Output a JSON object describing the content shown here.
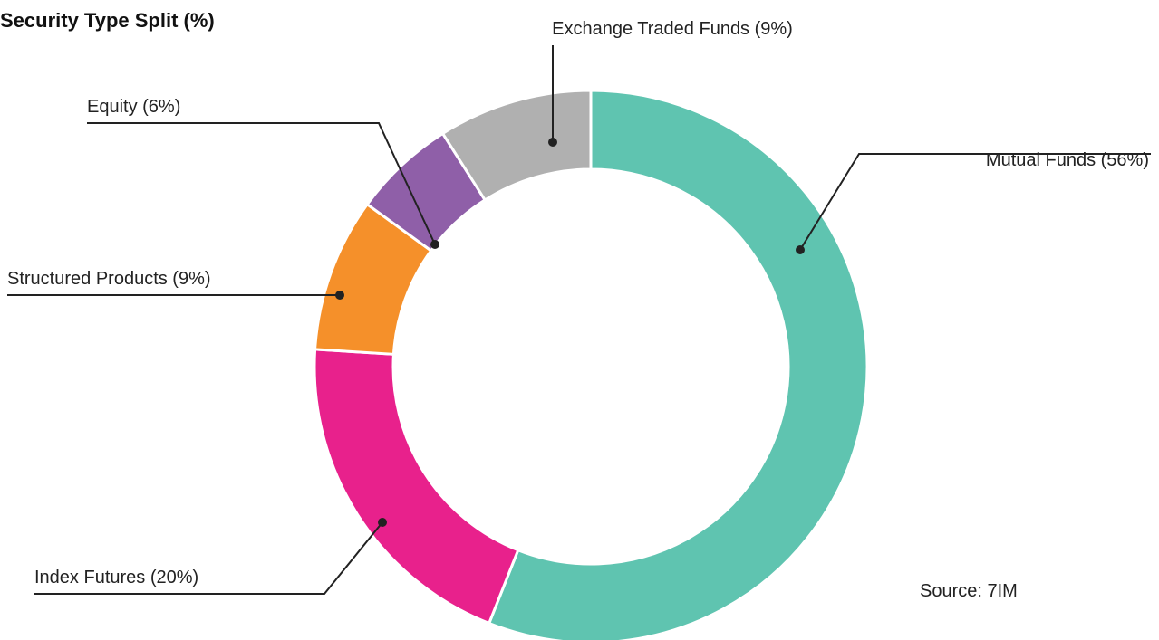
{
  "chart_data": {
    "type": "donut",
    "title": "Security Type Split (%)",
    "categories": [
      "Mutual Funds (56%)",
      "Index Futures (20%)",
      "Structured Products (9%)",
      "Equity (6%)",
      "Exchange Traded Funds (9%)"
    ],
    "values": [
      56,
      20,
      9,
      6,
      9
    ],
    "colors": [
      "#5fc4b0",
      "#e8218c",
      "#f5902a",
      "#8f5fa8",
      "#b0b0b0"
    ],
    "source": "Source: 7IM"
  }
}
